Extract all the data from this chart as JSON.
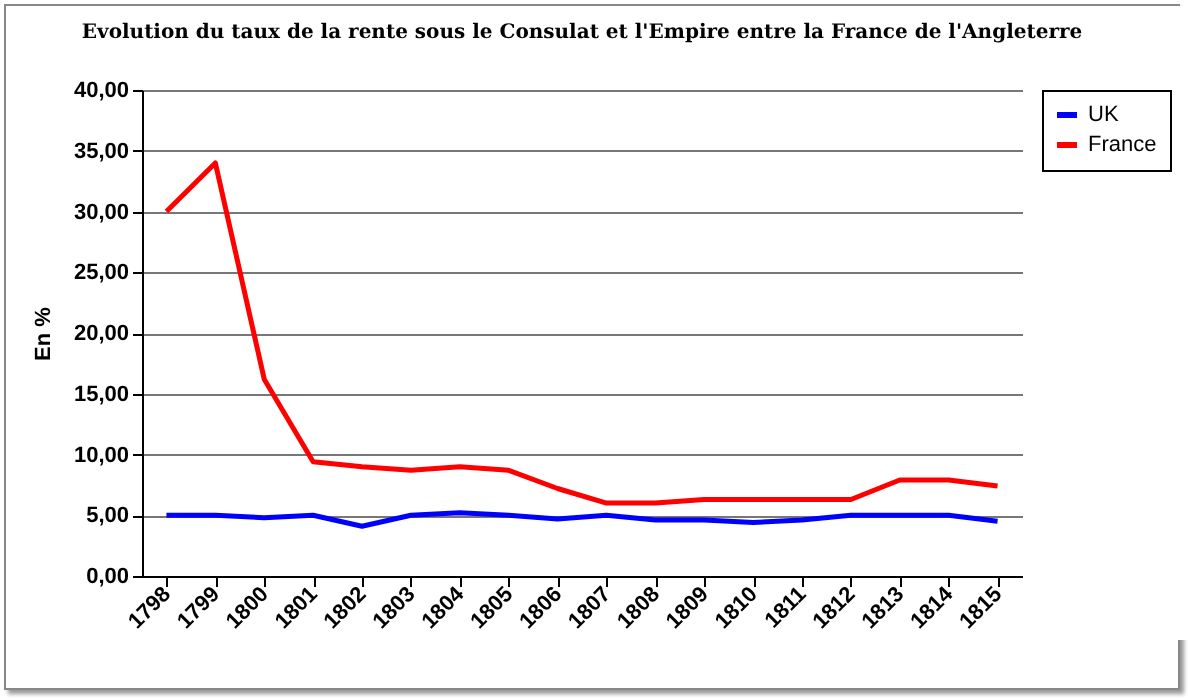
{
  "chart_data": {
    "type": "line",
    "title": "Evolution du taux de la rente sous le Consulat et l'Empire entre la France de l'Angleterre",
    "ylabel": "En %",
    "categories": [
      "1798",
      "1799",
      "1800",
      "1801",
      "1802",
      "1803",
      "1804",
      "1805",
      "1806",
      "1807",
      "1808",
      "1809",
      "1810",
      "1811",
      "1812",
      "1813",
      "1814",
      "1815"
    ],
    "series": [
      {
        "name": "UK",
        "color": "#0000ff",
        "values": [
          5.0,
          5.0,
          4.8,
          5.0,
          4.1,
          5.0,
          5.2,
          5.0,
          4.7,
          5.0,
          4.6,
          4.6,
          4.4,
          4.6,
          5.0,
          5.0,
          5.0,
          4.5
        ]
      },
      {
        "name": "France",
        "color": "#ff0000",
        "values": [
          30.0,
          34.0,
          16.2,
          9.4,
          9.0,
          8.7,
          9.0,
          8.7,
          7.2,
          6.0,
          6.0,
          6.3,
          6.3,
          6.3,
          6.3,
          7.9,
          7.9,
          7.4
        ]
      }
    ],
    "ylim": [
      0,
      40
    ],
    "yticks": [
      {
        "value": 0,
        "label": "0,00"
      },
      {
        "value": 5,
        "label": "5,00"
      },
      {
        "value": 10,
        "label": "10,00"
      },
      {
        "value": 15,
        "label": "15,00"
      },
      {
        "value": 20,
        "label": "20,00"
      },
      {
        "value": 25,
        "label": "25,00"
      },
      {
        "value": 30,
        "label": "30,00"
      },
      {
        "value": 35,
        "label": "35,00"
      },
      {
        "value": 40,
        "label": "40,00"
      }
    ],
    "grid": "y",
    "legend": "right",
    "marker": "none",
    "line_style": "solid"
  }
}
